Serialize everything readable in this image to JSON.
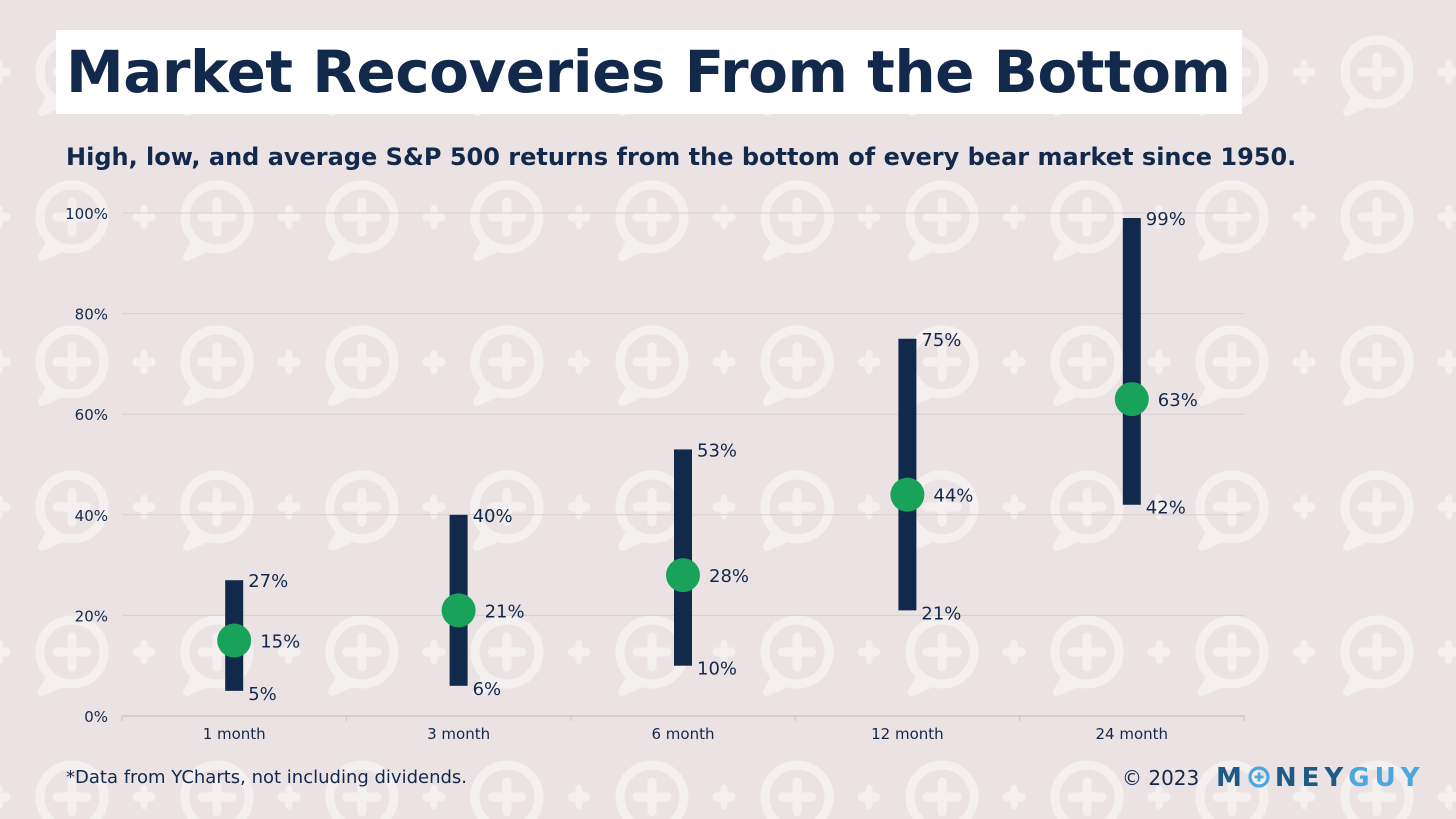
{
  "title": "Market Recoveries From the Bottom",
  "subtitle": "High, low, and average S&P 500 returns from the bottom of every bear market since 1950.",
  "footnote": "*Data from YCharts, not including dividends.",
  "copyright": "© 2023",
  "logo": {
    "text": "MONEYGUY",
    "part_m": "M",
    "part_ney": "NEY",
    "part_guy": "GUY"
  },
  "colors": {
    "background": "#ebe3e3",
    "pattern": "#f5f0f0",
    "title_box": "#ffffff",
    "text": "#13294b",
    "bar": "#13294b",
    "average_marker": "#19a35a",
    "gridline": "#d6d0d0",
    "logo_dark": "#1d5a86",
    "logo_light": "#4aa7df"
  },
  "chart_data": {
    "type": "range",
    "title": "Market Recoveries From the Bottom",
    "xlabel": "",
    "ylabel": "",
    "ylim": [
      0,
      100
    ],
    "yticks": [
      0,
      20,
      40,
      60,
      80,
      100
    ],
    "ytick_labels": [
      "0%",
      "20%",
      "40%",
      "60%",
      "80%",
      "100%"
    ],
    "grid": true,
    "categories": [
      "1 month",
      "3 month",
      "6 month",
      "12 month",
      "24 month"
    ],
    "series": [
      {
        "name": "High",
        "values": [
          27,
          40,
          53,
          75,
          99
        ],
        "labels": [
          "27%",
          "40%",
          "53%",
          "75%",
          "99%"
        ]
      },
      {
        "name": "Low",
        "values": [
          5,
          6,
          10,
          21,
          42
        ],
        "labels": [
          "5%",
          "6%",
          "10%",
          "21%",
          "42%"
        ]
      },
      {
        "name": "Average",
        "values": [
          15,
          21,
          28,
          44,
          63
        ],
        "labels": [
          "15%",
          "21%",
          "28%",
          "44%",
          "63%"
        ]
      }
    ]
  }
}
